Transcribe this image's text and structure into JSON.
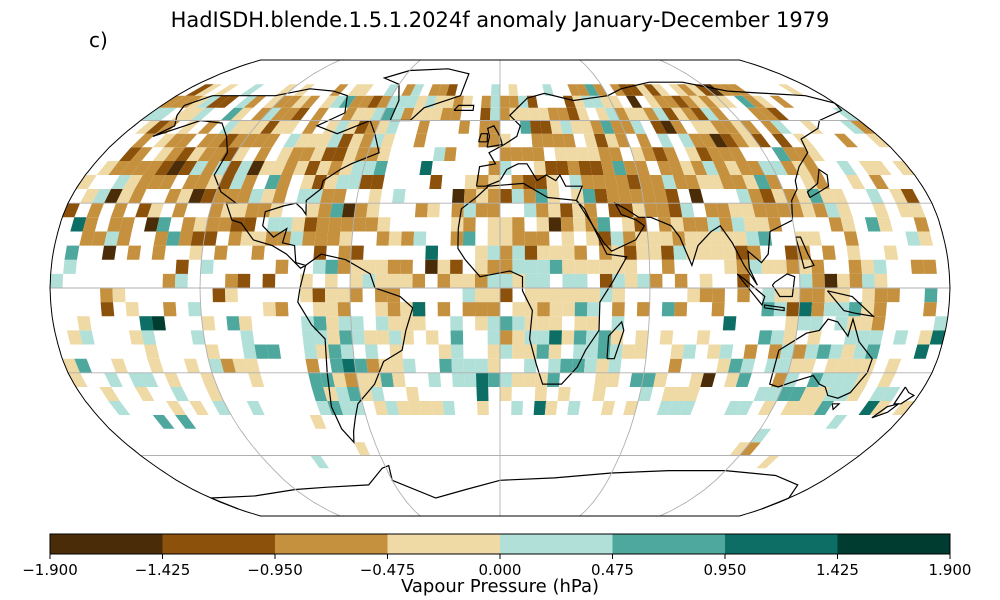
{
  "title": "HadISDH.blende.1.5.1.2024f anomaly January-December 1979",
  "panel_label": "c)",
  "colorbar": {
    "label": "Vapour Pressure (hPa)",
    "ticks": [
      "−1.900",
      "−1.425",
      "−0.950",
      "−0.475",
      "0.000",
      "0.475",
      "0.950",
      "1.425",
      "1.900"
    ],
    "colors": [
      "#4a2d08",
      "#8c510a",
      "#c5913f",
      "#efd9a5",
      "#b1e0d9",
      "#4ea89d",
      "#0c6e64",
      "#003c30"
    ]
  },
  "map": {
    "projection": "Robinson",
    "ocean_color": "#ffffff",
    "coastline_color": "#000000",
    "gridline_color": "#b0b0b0"
  }
}
